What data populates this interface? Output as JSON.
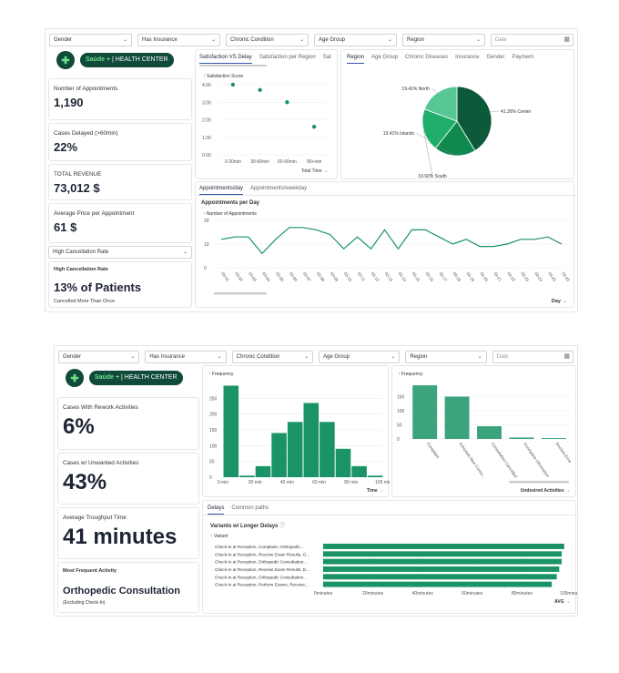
{
  "filters": {
    "gender": "Gender",
    "insurance": "Has Insurance",
    "chronic": "Chronic Condition",
    "age": "Age Group",
    "region": "Region",
    "date": "Date"
  },
  "logo": {
    "brand": "Saúde +",
    "subtitle": "| HEALTH CENTER"
  },
  "dash1": {
    "kpis": [
      {
        "label": "Number of Appointments",
        "value": "1,190"
      },
      {
        "label": "Cases Delayed (>60min)",
        "value": "22%"
      },
      {
        "label": "TOTAL REVENUE",
        "value": "73,012 $"
      },
      {
        "label": "Average Price per Appointment",
        "value": "61 $"
      }
    ],
    "selector": "High Cancellation Rate",
    "cancel": {
      "title": "High Cancellation Rate",
      "value": "13% of Patients",
      "note": "Cancelled More Than Once"
    },
    "sat_tabs": [
      "Satisfaction VS Delay",
      "Satisfaction per Region",
      "Sat"
    ],
    "region_tabs": [
      "Region",
      "Age Group",
      "Chronic Diseases",
      "Insurance",
      "Gender",
      "Payment"
    ],
    "appt_tabs": [
      "Appointments/day",
      "Appointments/weekday"
    ],
    "appt_title": "Appointments per Day",
    "appt_ylabel": "Number of Appointments",
    "appt_xlabel": "Day →",
    "sat_ylabel": "Satisfaction Score",
    "sat_xlabel": "Total Time →"
  },
  "dash2": {
    "kpis": [
      {
        "label": "Cases With Rework Activities",
        "value": "6%"
      },
      {
        "label": "Cases w/ Unwanted Activities",
        "value": "43%"
      },
      {
        "label": "Average Troughput Time",
        "value": "41 minutes"
      }
    ],
    "frequent": {
      "title": "Most Frequent Activity",
      "value": "Orthopedic Consultation",
      "note": "(Excluding Check-In)"
    },
    "freq_label": "Frequency",
    "time_label": "Time →",
    "unwanted_label": "Undesired Activities →",
    "delay_tabs": [
      "Delays",
      "Common paths"
    ],
    "delay_title": "Variants w/ Longer Delays",
    "variant_label": "Variant",
    "avg_label": "AVG →"
  },
  "chart_data": [
    {
      "type": "scatter",
      "title": "",
      "xlabel": "Total Time",
      "ylabel": "Satisfaction Score",
      "categories": [
        "0-30min",
        "30-60min",
        "60-90min",
        "90+min"
      ],
      "values": [
        4.0,
        3.7,
        3.0,
        1.6
      ],
      "ylim": [
        0,
        4
      ],
      "yticks": [
        "0.00",
        "1.00",
        "2.00",
        "3.00",
        "4.00"
      ],
      "color": "#1a9466"
    },
    {
      "type": "pie",
      "title": "",
      "labels": [
        "Center",
        "Islands",
        "South",
        "North"
      ],
      "values": [
        41.26,
        19.41,
        19.92,
        19.41
      ],
      "value_labels": [
        "41.26% Center",
        "19.41% Islands",
        "19.92% South",
        "19.41% North"
      ],
      "colors": [
        "#0d5a3a",
        "#10894f",
        "#1fae6b",
        "#57c795"
      ]
    },
    {
      "type": "line",
      "title": "Appointments per Day",
      "ylabel": "Number of Appointments",
      "xlabel": "Day",
      "x": [
        "03-01",
        "03-02",
        "03-03",
        "03-04",
        "03-05",
        "03-06",
        "03-07",
        "03-08",
        "03-09",
        "03-10",
        "03-11",
        "03-12",
        "03-13",
        "03-14",
        "03-15",
        "03-16",
        "03-17",
        "03-18",
        "03-19",
        "03-20",
        "03-21",
        "03-22",
        "03-23",
        "03-24",
        "03-25",
        "03-26"
      ],
      "values": [
        12,
        13,
        13,
        6,
        12,
        17,
        17,
        16,
        14,
        8,
        13,
        8,
        16,
        8,
        16,
        16,
        13,
        10,
        12,
        9,
        9,
        10,
        12,
        12,
        13,
        10
      ],
      "ylim": [
        0,
        20
      ],
      "yticks": [
        "0",
        "10",
        "20"
      ],
      "color": "#1a9466"
    },
    {
      "type": "bar",
      "title": "",
      "ylabel": "Frequency",
      "xlabel": "Time",
      "categories": [
        "0-10",
        "10-20",
        "20-30",
        "30-40",
        "40-50",
        "50-60",
        "60-70",
        "70-80",
        "80-90",
        "90-100"
      ],
      "values": [
        290,
        5,
        35,
        140,
        175,
        235,
        175,
        90,
        35,
        5
      ],
      "xticks": [
        "0 min",
        "20 min",
        "40 min",
        "60 min",
        "80 min",
        "100 min"
      ],
      "ylim": [
        0,
        300
      ],
      "yticks": [
        "0",
        "50",
        "100",
        "150",
        "200",
        "250"
      ],
      "color": "#1a9466"
    },
    {
      "type": "bar",
      "title": "",
      "ylabel": "Frequency",
      "xlabel": "Undesired Activities",
      "categories": [
        "Complaint",
        "Schedule New Consu...",
        "Consultation Cancelled",
        "Incomplete Information",
        "Doctors Error"
      ],
      "values": [
        190,
        150,
        45,
        5,
        3
      ],
      "ylim": [
        0,
        200
      ],
      "yticks": [
        "0",
        "50",
        "100",
        "150"
      ],
      "color": "#1a9466"
    },
    {
      "type": "bar",
      "title": "Variants w/ Longer Delays",
      "orientation": "horizontal",
      "categories": [
        "Check-In at Reception, Complaint, Orthopedic...",
        "Check-In at Reception, Receive Exam Results, O...",
        "Check-In at Reception, Orthopedic Consultation...",
        "Check-In at Reception, Receive Exam Results, D...",
        "Check-In at Reception, Orthopedic Consultation...",
        "Check-In at Reception, Perform Exams, Receive..."
      ],
      "values": [
        97,
        96,
        96,
        95,
        94,
        92
      ],
      "xlim": [
        0,
        100
      ],
      "xticks": [
        "0minutes",
        "20minutes",
        "40minutes",
        "60minutes",
        "80minutes",
        "100minutes"
      ],
      "color": "#1a9466"
    }
  ]
}
